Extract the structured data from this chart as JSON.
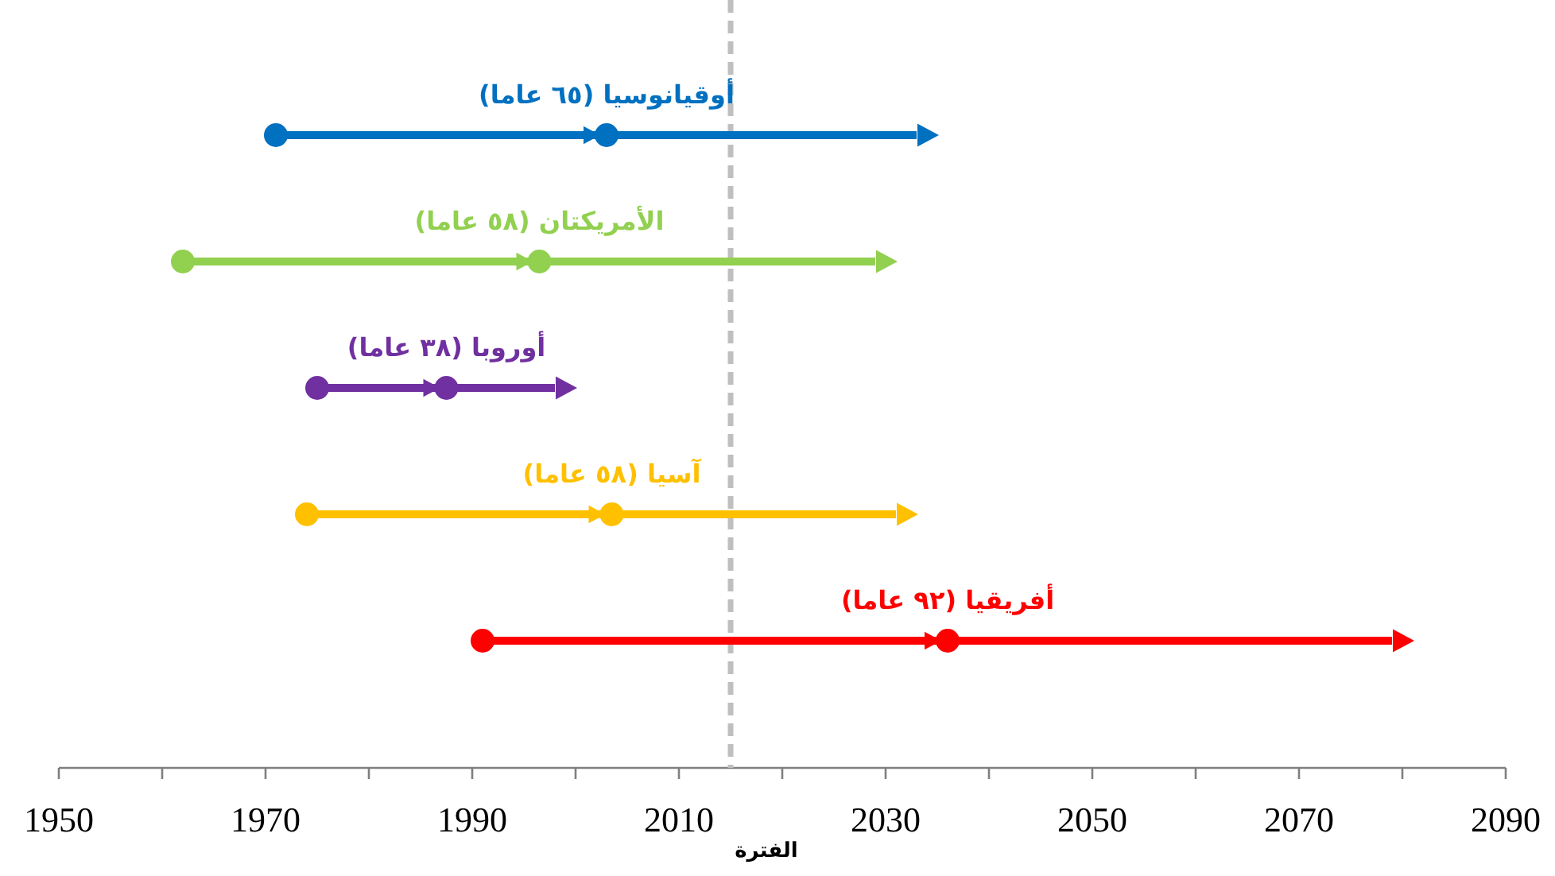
{
  "chart_data": {
    "type": "bar",
    "orientation": "horizontal",
    "categories": [
      "أوقيانوسيا (٦٥ عاما)",
      "الأمريكتان (٥٨ عاما)",
      "أوروبا (٣٨ عاما)",
      "آسيا (٥٨ عاما)",
      "أفريقيا (٩٢ عاما)"
    ],
    "series": [
      {
        "type": "bar",
        "base": [
          1971,
          1962,
          1975,
          1974,
          1991
        ],
        "values": [
          62,
          67,
          23,
          57,
          88
        ],
        "colors": [
          "#0070c0",
          "#92d050",
          "#7030a0",
          "#ffc000",
          "#ff0000"
        ]
      },
      {
        "type": "scatter",
        "marker": "circle",
        "values": [
          1971,
          1962,
          1975,
          1974,
          1991
        ],
        "colors": [
          "#0070c0",
          "#92d050",
          "#7030a0",
          "#ffc000",
          "#ff0000"
        ]
      },
      {
        "type": "scatter",
        "marker": "circle",
        "values": [
          2003,
          1996.5,
          1987.5,
          2003.5,
          2036
        ],
        "colors": [
          "#0070c0",
          "#92d050",
          "#7030a0",
          "#ffc000",
          "#ff0000"
        ]
      }
    ],
    "xlim": [
      1950,
      2090
    ],
    "xticks": [
      1950,
      {
        "value": 1960,
        "label": null
      },
      1970,
      {
        "value": 1980,
        "label": null
      },
      1990,
      {
        "value": 2000,
        "label": null
      },
      2010,
      {
        "value": 2020,
        "label": null
      },
      2030,
      {
        "value": 2040,
        "label": null
      },
      2050,
      {
        "value": 2060,
        "label": null
      },
      2070,
      {
        "value": 2080,
        "label": null
      },
      2090
    ],
    "xlabel": "الفترة",
    "ref_lines": [
      {
        "axis": "x",
        "value": 2015,
        "color": "#bfbfbf",
        "line_style": "dashed"
      }
    ]
  }
}
